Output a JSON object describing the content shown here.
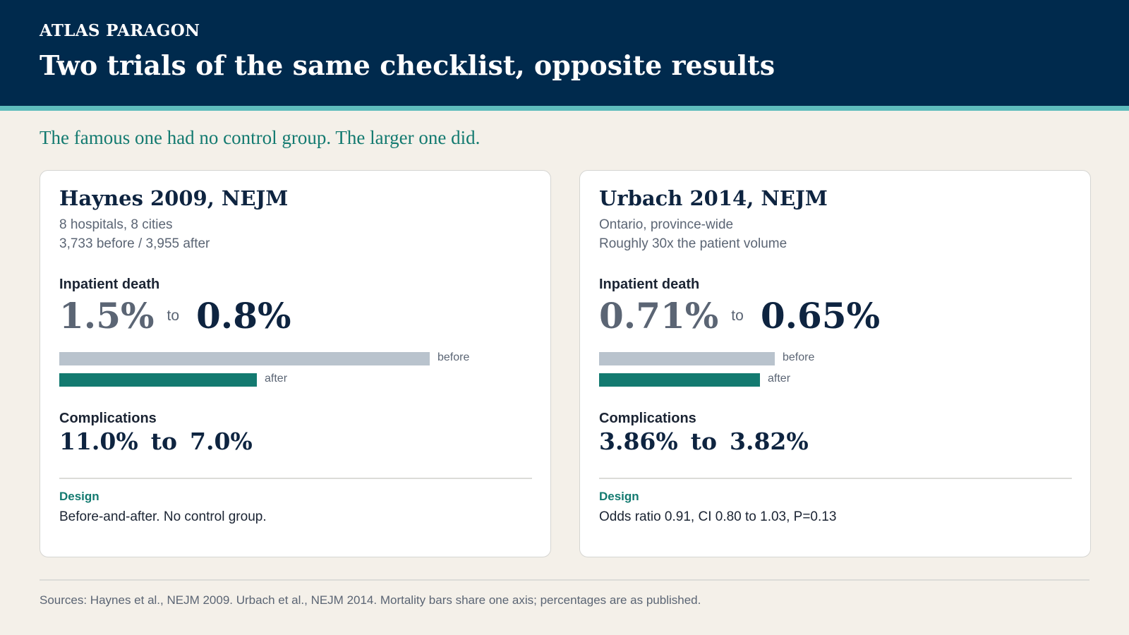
{
  "header": {
    "brand": "ATLAS PARAGON",
    "title": "Two trials of the same checklist, opposite results"
  },
  "subtitle": "The famous one had no control group. The larger one did.",
  "colors": {
    "header_bg": "#002a4d",
    "accent_rule": "#5fbcbc",
    "teal": "#137a70",
    "before_bar": "#b9c3cd",
    "background": "#f4f0e9"
  },
  "labels": {
    "death": "Inpatient death",
    "to": "to",
    "complications": "Complications",
    "design": "Design",
    "before": "before",
    "after": "after"
  },
  "trials": [
    {
      "title": "Haynes 2009, NEJM",
      "meta1": "8 hospitals, 8 cities",
      "meta2": "3,733 before / 3,955 after",
      "death_before": "1.5%",
      "death_after": "0.8%",
      "comp_before": "11.0%",
      "comp_after": "7.0%",
      "design": "Before-and-after. No control group."
    },
    {
      "title": "Urbach 2014, NEJM",
      "meta1": "Ontario, province-wide",
      "meta2": "Roughly 30x the patient volume",
      "death_before": "0.71%",
      "death_after": "0.65%",
      "comp_before": "3.86%",
      "comp_after": "3.82%",
      "design": "Odds ratio 0.91, CI 0.80 to 1.03, P=0.13"
    }
  ],
  "chart_data": {
    "type": "bar",
    "shared_axis": true,
    "axis_max": 1.5,
    "categories": [
      "before",
      "after"
    ],
    "series": [
      {
        "name": "Haynes 2009, NEJM",
        "values": [
          1.5,
          0.8
        ]
      },
      {
        "name": "Urbach 2014, NEJM",
        "values": [
          0.71,
          0.65
        ]
      }
    ]
  },
  "footer": "Sources: Haynes et al., NEJM 2009. Urbach et al., NEJM 2014. Mortality bars share one axis; percentages are as published."
}
